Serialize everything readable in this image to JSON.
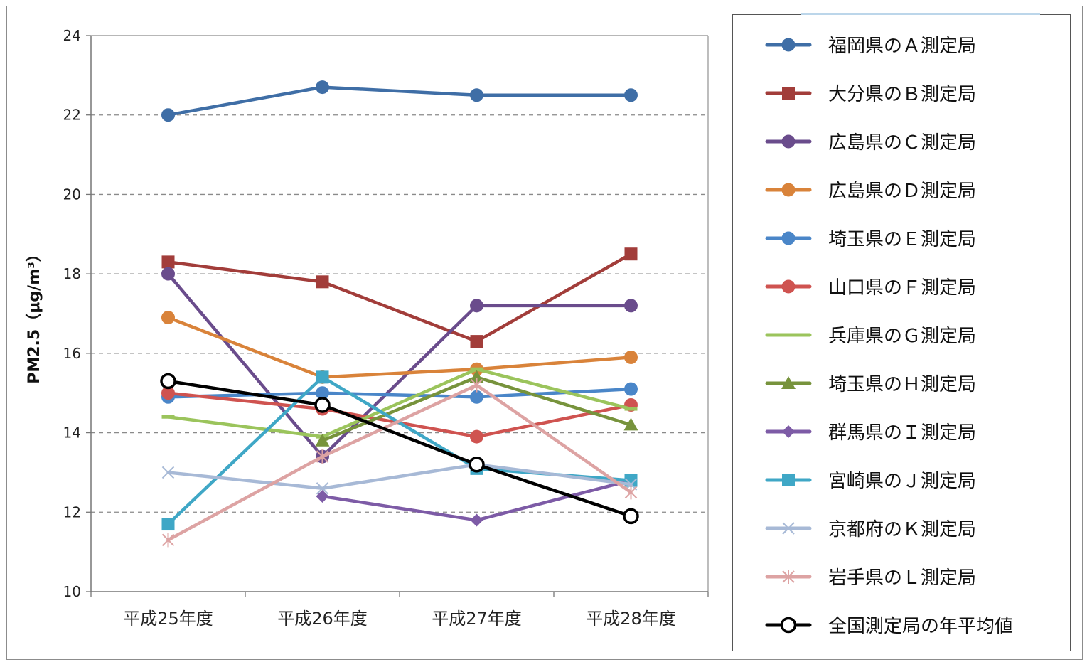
{
  "chart_data": {
    "type": "line",
    "xlabel": "",
    "ylabel": "PM2.5（μg/m³）",
    "ylim": [
      10,
      24
    ],
    "yticks": [
      10,
      12,
      14,
      16,
      18,
      20,
      22,
      24
    ],
    "grid": "horizontal dashed",
    "legend_position": "right",
    "categories": [
      "平成25年度",
      "平成26年度",
      "平成27年度",
      "平成28年度"
    ],
    "series": [
      {
        "name": "福岡県のＡ測定局",
        "values": [
          22.0,
          22.7,
          22.5,
          22.5
        ],
        "color": "#3F6EA6",
        "marker": "circle"
      },
      {
        "name": "大分県のＢ測定局",
        "values": [
          18.3,
          17.8,
          16.3,
          18.5
        ],
        "color": "#A23D3A",
        "marker": "square"
      },
      {
        "name": "広島県のＣ測定局",
        "values": [
          18.0,
          13.4,
          17.2,
          17.2
        ],
        "color": "#6A4C8C",
        "marker": "circle"
      },
      {
        "name": "広島県のＤ測定局",
        "values": [
          16.9,
          15.4,
          15.6,
          15.9
        ],
        "color": "#D9833A",
        "marker": "circle"
      },
      {
        "name": "埼玉県のＥ測定局",
        "values": [
          14.9,
          15.0,
          14.9,
          15.1
        ],
        "color": "#4A86C8",
        "marker": "circle"
      },
      {
        "name": "山口県のＦ測定局",
        "values": [
          15.0,
          14.6,
          13.9,
          14.7
        ],
        "color": "#CF5350",
        "marker": "circle"
      },
      {
        "name": "兵庫県のＧ測定局",
        "values": [
          14.4,
          13.9,
          15.6,
          14.6
        ],
        "color": "#9BC45C",
        "marker": "dash"
      },
      {
        "name": "埼玉県のＨ測定局",
        "values": [
          null,
          13.8,
          15.4,
          14.2
        ],
        "color": "#77933C",
        "marker": "triangle"
      },
      {
        "name": "群馬県のＩ測定局",
        "values": [
          null,
          12.4,
          11.8,
          12.8
        ],
        "color": "#7D5BA6",
        "marker": "diamond"
      },
      {
        "name": "宮崎県のＪ測定局",
        "values": [
          11.7,
          15.4,
          13.1,
          12.8
        ],
        "color": "#3FA7C6",
        "marker": "square"
      },
      {
        "name": "京都府のＫ測定局",
        "values": [
          13.0,
          12.6,
          13.2,
          12.7
        ],
        "color": "#A7B9D6",
        "marker": "x"
      },
      {
        "name": "岩手県のＬ測定局",
        "values": [
          11.3,
          13.4,
          15.2,
          12.5
        ],
        "color": "#DDA3A3",
        "marker": "asterisk"
      },
      {
        "name": "全国測定局の年平均値",
        "values": [
          15.3,
          14.7,
          13.2,
          11.9
        ],
        "color": "#000000",
        "marker": "open-circle"
      }
    ]
  }
}
